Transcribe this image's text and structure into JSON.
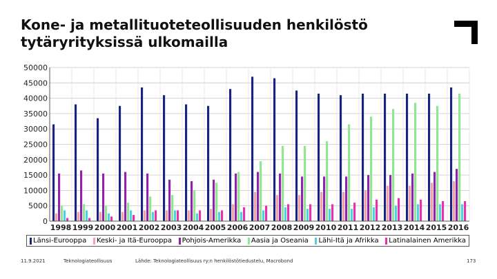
{
  "slide": {
    "title": "Kone- ja metallituoteteollisuuden henkilöstö\ntytäryrityksissä ulkomailla",
    "footer_date": "11.9.2021",
    "footer_org": "Teknologiateollisuus",
    "footer_source": "Lähde: Teknologiateollisuus ry:n henkilöstötiedustelu, Macrobond",
    "page_number": "173",
    "logo_icon": "corner-bracket-logo"
  },
  "chart_data": {
    "type": "bar",
    "title": "",
    "xlabel": "",
    "ylabel": "",
    "ylim": [
      0,
      50000
    ],
    "yticks": [
      0,
      5000,
      10000,
      15000,
      20000,
      25000,
      30000,
      35000,
      40000,
      45000,
      50000
    ],
    "ytick_labels": [
      "0",
      "5000",
      "10000",
      "15000",
      "20000",
      "25000",
      "30000",
      "35000",
      "40000",
      "45000",
      "50000"
    ],
    "grid": true,
    "legend_position": "bottom",
    "categories": [
      "1998",
      "1999",
      "2000",
      "2001",
      "2002",
      "2003",
      "2004",
      "2005",
      "2006",
      "2007",
      "2008",
      "2009",
      "2010",
      "2011",
      "2012",
      "2013",
      "2014",
      "2015",
      "2016"
    ],
    "series": [
      {
        "name": "Länsi-Eurooppa",
        "color": "#1a237e",
        "values": [
          31500,
          38000,
          33500,
          37500,
          43500,
          41000,
          38000,
          37500,
          43000,
          47000,
          46500,
          42500,
          41500,
          41000,
          41500,
          41500,
          41500,
          41500,
          43500
        ]
      },
      {
        "name": "Keski- ja Itä-Eurooppa",
        "color": "#f4a0a8",
        "values": [
          2500,
          3000,
          3000,
          3000,
          3500,
          3500,
          3500,
          4000,
          5500,
          9500,
          8500,
          8500,
          9500,
          9500,
          10000,
          11500,
          11500,
          12500,
          13000
        ]
      },
      {
        "name": "Pohjois-Amerikka",
        "color": "#8e24aa",
        "values": [
          15500,
          16500,
          15500,
          16000,
          15500,
          13500,
          13000,
          13500,
          15500,
          16000,
          15500,
          14500,
          14500,
          14500,
          15000,
          15000,
          15500,
          16000,
          17000
        ]
      },
      {
        "name": "Aasia ja Oseania",
        "color": "#8ee88e",
        "values": [
          5000,
          5500,
          5000,
          6000,
          8000,
          8500,
          10000,
          12500,
          16000,
          19500,
          24500,
          24500,
          26000,
          31500,
          34000,
          36500,
          38500,
          37500,
          41500
        ]
      },
      {
        "name": "Lähi-Itä ja Afrikka",
        "color": "#4dd0e1",
        "values": [
          3500,
          3500,
          2500,
          3500,
          3000,
          3500,
          2500,
          3000,
          3000,
          3500,
          4500,
          4000,
          4000,
          4000,
          4500,
          5000,
          5500,
          5500,
          5500
        ]
      },
      {
        "name": "Latinalainen Amerikka",
        "color": "#ec2fa8",
        "values": [
          1000,
          1000,
          1500,
          2000,
          3500,
          3500,
          3500,
          3500,
          4500,
          5000,
          5500,
          5500,
          5500,
          6000,
          7000,
          7500,
          7000,
          6500,
          6500
        ]
      }
    ]
  }
}
